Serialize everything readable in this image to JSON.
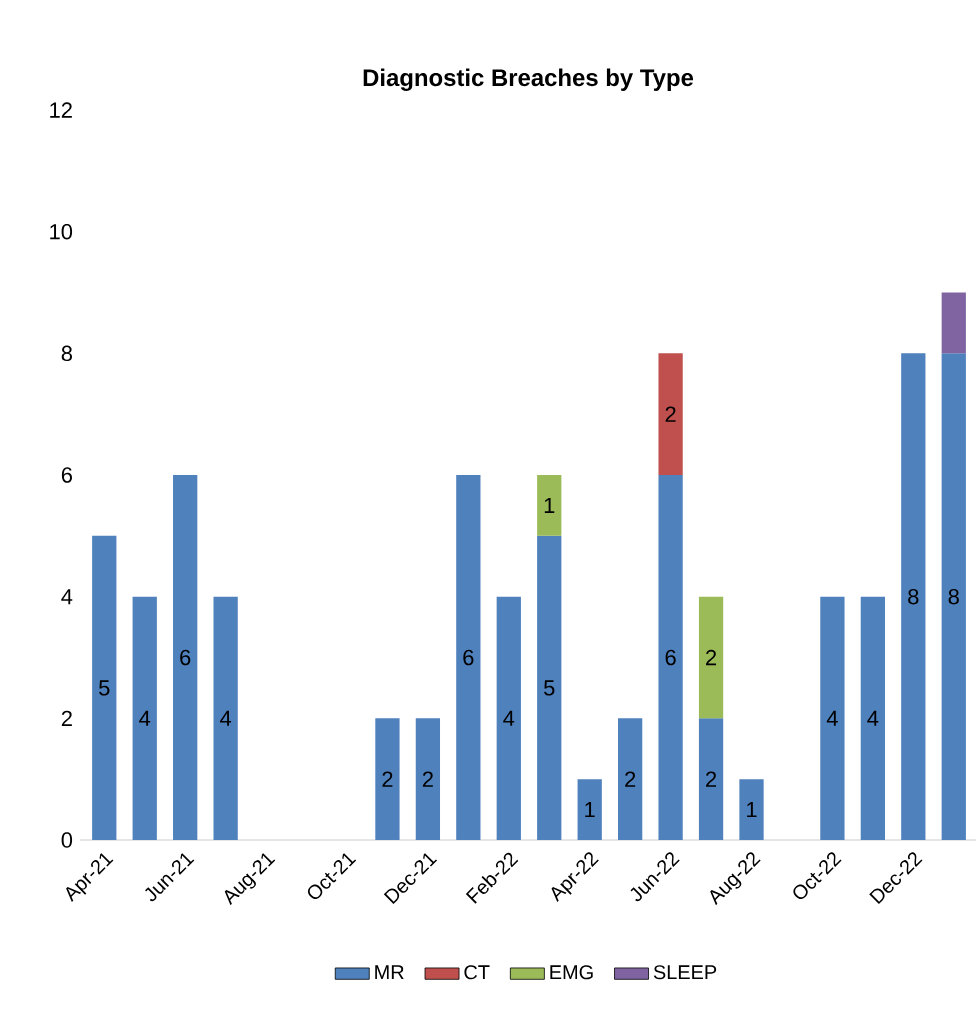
{
  "chart_data": {
    "type": "bar",
    "title": "Diagnostic Breaches by Type",
    "stacked": true,
    "categories": [
      "Apr-21",
      null,
      "Jun-21",
      null,
      "Aug-21",
      null,
      "Oct-21",
      null,
      "Dec-21",
      null,
      "Feb-22",
      null,
      "Apr-22",
      null,
      "Jun-22",
      null,
      "Aug-22",
      null,
      "Oct-22",
      null,
      "Dec-22",
      null
    ],
    "ylim": [
      0,
      12
    ],
    "yticks": [
      0,
      2,
      4,
      6,
      8,
      10,
      12
    ],
    "legend": "bottom",
    "series": [
      {
        "name": "MR",
        "color": "#4f81bd",
        "values": [
          5,
          4,
          6,
          4,
          null,
          null,
          null,
          2,
          2,
          6,
          4,
          5,
          1,
          2,
          6,
          2,
          1,
          null,
          4,
          4,
          8,
          8
        ],
        "value_labels": [
          "5",
          "4",
          "6",
          "4",
          null,
          null,
          null,
          "2",
          "2",
          "6",
          "4",
          "5",
          "1",
          "2",
          "6",
          "2",
          "1",
          null,
          "4",
          "4",
          "8",
          "8"
        ]
      },
      {
        "name": "CT",
        "color": "#c0504d",
        "values": [
          null,
          null,
          null,
          null,
          null,
          null,
          null,
          null,
          null,
          null,
          null,
          null,
          null,
          null,
          2,
          null,
          null,
          null,
          null,
          null,
          null,
          null
        ],
        "value_labels": [
          null,
          null,
          null,
          null,
          null,
          null,
          null,
          null,
          null,
          null,
          null,
          null,
          null,
          null,
          "2",
          null,
          null,
          null,
          null,
          null,
          null,
          null
        ]
      },
      {
        "name": "EMG",
        "color": "#9bbb59",
        "values": [
          null,
          null,
          null,
          null,
          null,
          null,
          null,
          null,
          null,
          null,
          null,
          1,
          null,
          null,
          null,
          2,
          null,
          null,
          null,
          null,
          null,
          null
        ],
        "value_labels": [
          null,
          null,
          null,
          null,
          null,
          null,
          null,
          null,
          null,
          null,
          null,
          "1",
          null,
          null,
          null,
          "2",
          null,
          null,
          null,
          null,
          null,
          null
        ]
      },
      {
        "name": "SLEEP",
        "color": "#8064a2",
        "values": [
          null,
          null,
          null,
          null,
          null,
          null,
          null,
          null,
          null,
          null,
          null,
          null,
          null,
          null,
          null,
          null,
          null,
          null,
          null,
          null,
          null,
          1
        ]
      }
    ]
  }
}
